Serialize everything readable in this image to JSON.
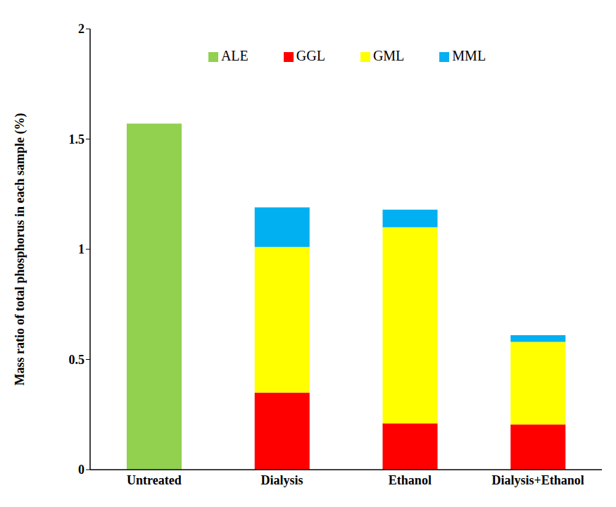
{
  "chart_data": {
    "type": "bar",
    "stacked": true,
    "ylabel": "Mass ratio of total phosphorus in each sample (%)",
    "categories": [
      "Untreated",
      "Dialysis",
      "Ethanol",
      "Dialysis+Ethanol"
    ],
    "series": [
      {
        "name": "GGL",
        "color": "#ff0000",
        "values": [
          null,
          0.35,
          0.21,
          0.205
        ]
      },
      {
        "name": "GML",
        "color": "#ffff00",
        "values": [
          null,
          0.66,
          0.89,
          0.375
        ]
      },
      {
        "name": "MML",
        "color": "#00b0f0",
        "values": [
          null,
          0.18,
          0.08,
          0.03
        ]
      },
      {
        "name": "ALE",
        "color": "#92d050",
        "values": [
          1.57,
          null,
          null,
          null
        ]
      }
    ],
    "ylim": [
      0,
      2
    ],
    "yticks": [
      0,
      0.5,
      1,
      1.5,
      2
    ],
    "grid": false,
    "legend": "top"
  }
}
